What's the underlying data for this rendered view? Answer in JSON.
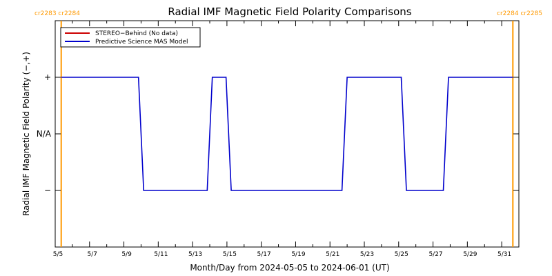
{
  "chart_data": {
    "type": "line",
    "title": "Radial IMF Magnetic Field Polarity Comparisons",
    "xlabel": "Month/Day from 2024-05-05 to 2024-06-01 (UT)",
    "ylabel": "Radial IMF Magnetic Field Polarity (−,+)",
    "x_tick_labels": [
      "5/5",
      "5/7",
      "5/9",
      "5/11",
      "5/13",
      "5/15",
      "5/17",
      "5/19",
      "5/21",
      "5/23",
      "5/25",
      "5/27",
      "5/29",
      "5/31"
    ],
    "x_tick_days": [
      0,
      2,
      4,
      6,
      8,
      10,
      12,
      14,
      16,
      18,
      20,
      22,
      24,
      26
    ],
    "x_range_days": [
      0,
      27
    ],
    "y_ticks": [
      {
        "label": "+",
        "value": 1
      },
      {
        "label": "N/A",
        "value": 0
      },
      {
        "label": "−",
        "value": -1
      }
    ],
    "ylim": [
      -2,
      2
    ],
    "carrington_markers": [
      {
        "label": "cr2283 cr2284",
        "day": 0.35,
        "color": "#ff9900",
        "side": "left"
      },
      {
        "label": "cr2284 cr2285",
        "day": 26.65,
        "color": "#ff9900",
        "side": "right"
      }
    ],
    "legend": {
      "placement": "top-left",
      "entries": [
        {
          "name": "STEREO−Behind (No data)",
          "color": "#cc0000"
        },
        {
          "name": "Predictive Science MAS Model",
          "color": "#0000cc"
        }
      ]
    },
    "series": [
      {
        "name": "Predictive Science MAS Model",
        "color": "#0000cc",
        "x": [
          0.35,
          4.85,
          5.15,
          8.85,
          9.15,
          9.95,
          10.25,
          16.7,
          17.0,
          20.15,
          20.45,
          22.6,
          22.9,
          26.65
        ],
        "y": [
          1,
          1,
          -1,
          -1,
          1,
          1,
          -1,
          -1,
          1,
          1,
          -1,
          -1,
          1,
          1
        ]
      },
      {
        "name": "STEREO−Behind (No data)",
        "color": "#cc0000",
        "x": [],
        "y": []
      }
    ]
  }
}
